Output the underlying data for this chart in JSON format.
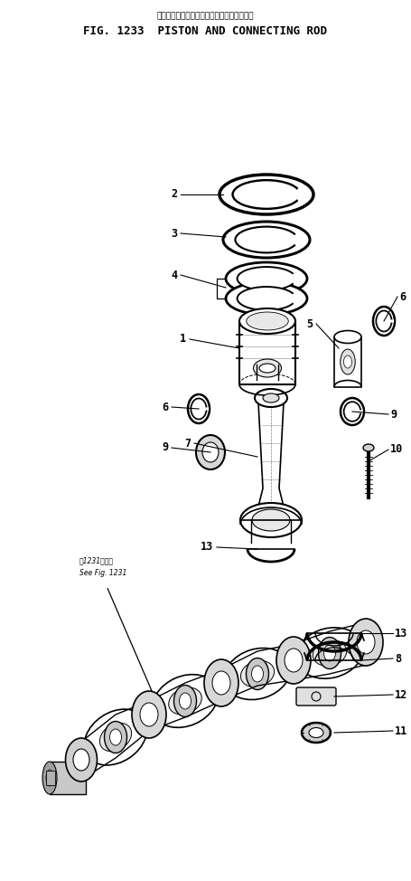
{
  "title_japanese": "ビストン・および・コネクティング・ロッド",
  "title_english": "FIG. 1233  PISTON AND CONNECTING ROD",
  "bg_color": "#ffffff",
  "fg_color": "#000000",
  "fig_width": 4.55,
  "fig_height": 9.74,
  "dpi": 100
}
